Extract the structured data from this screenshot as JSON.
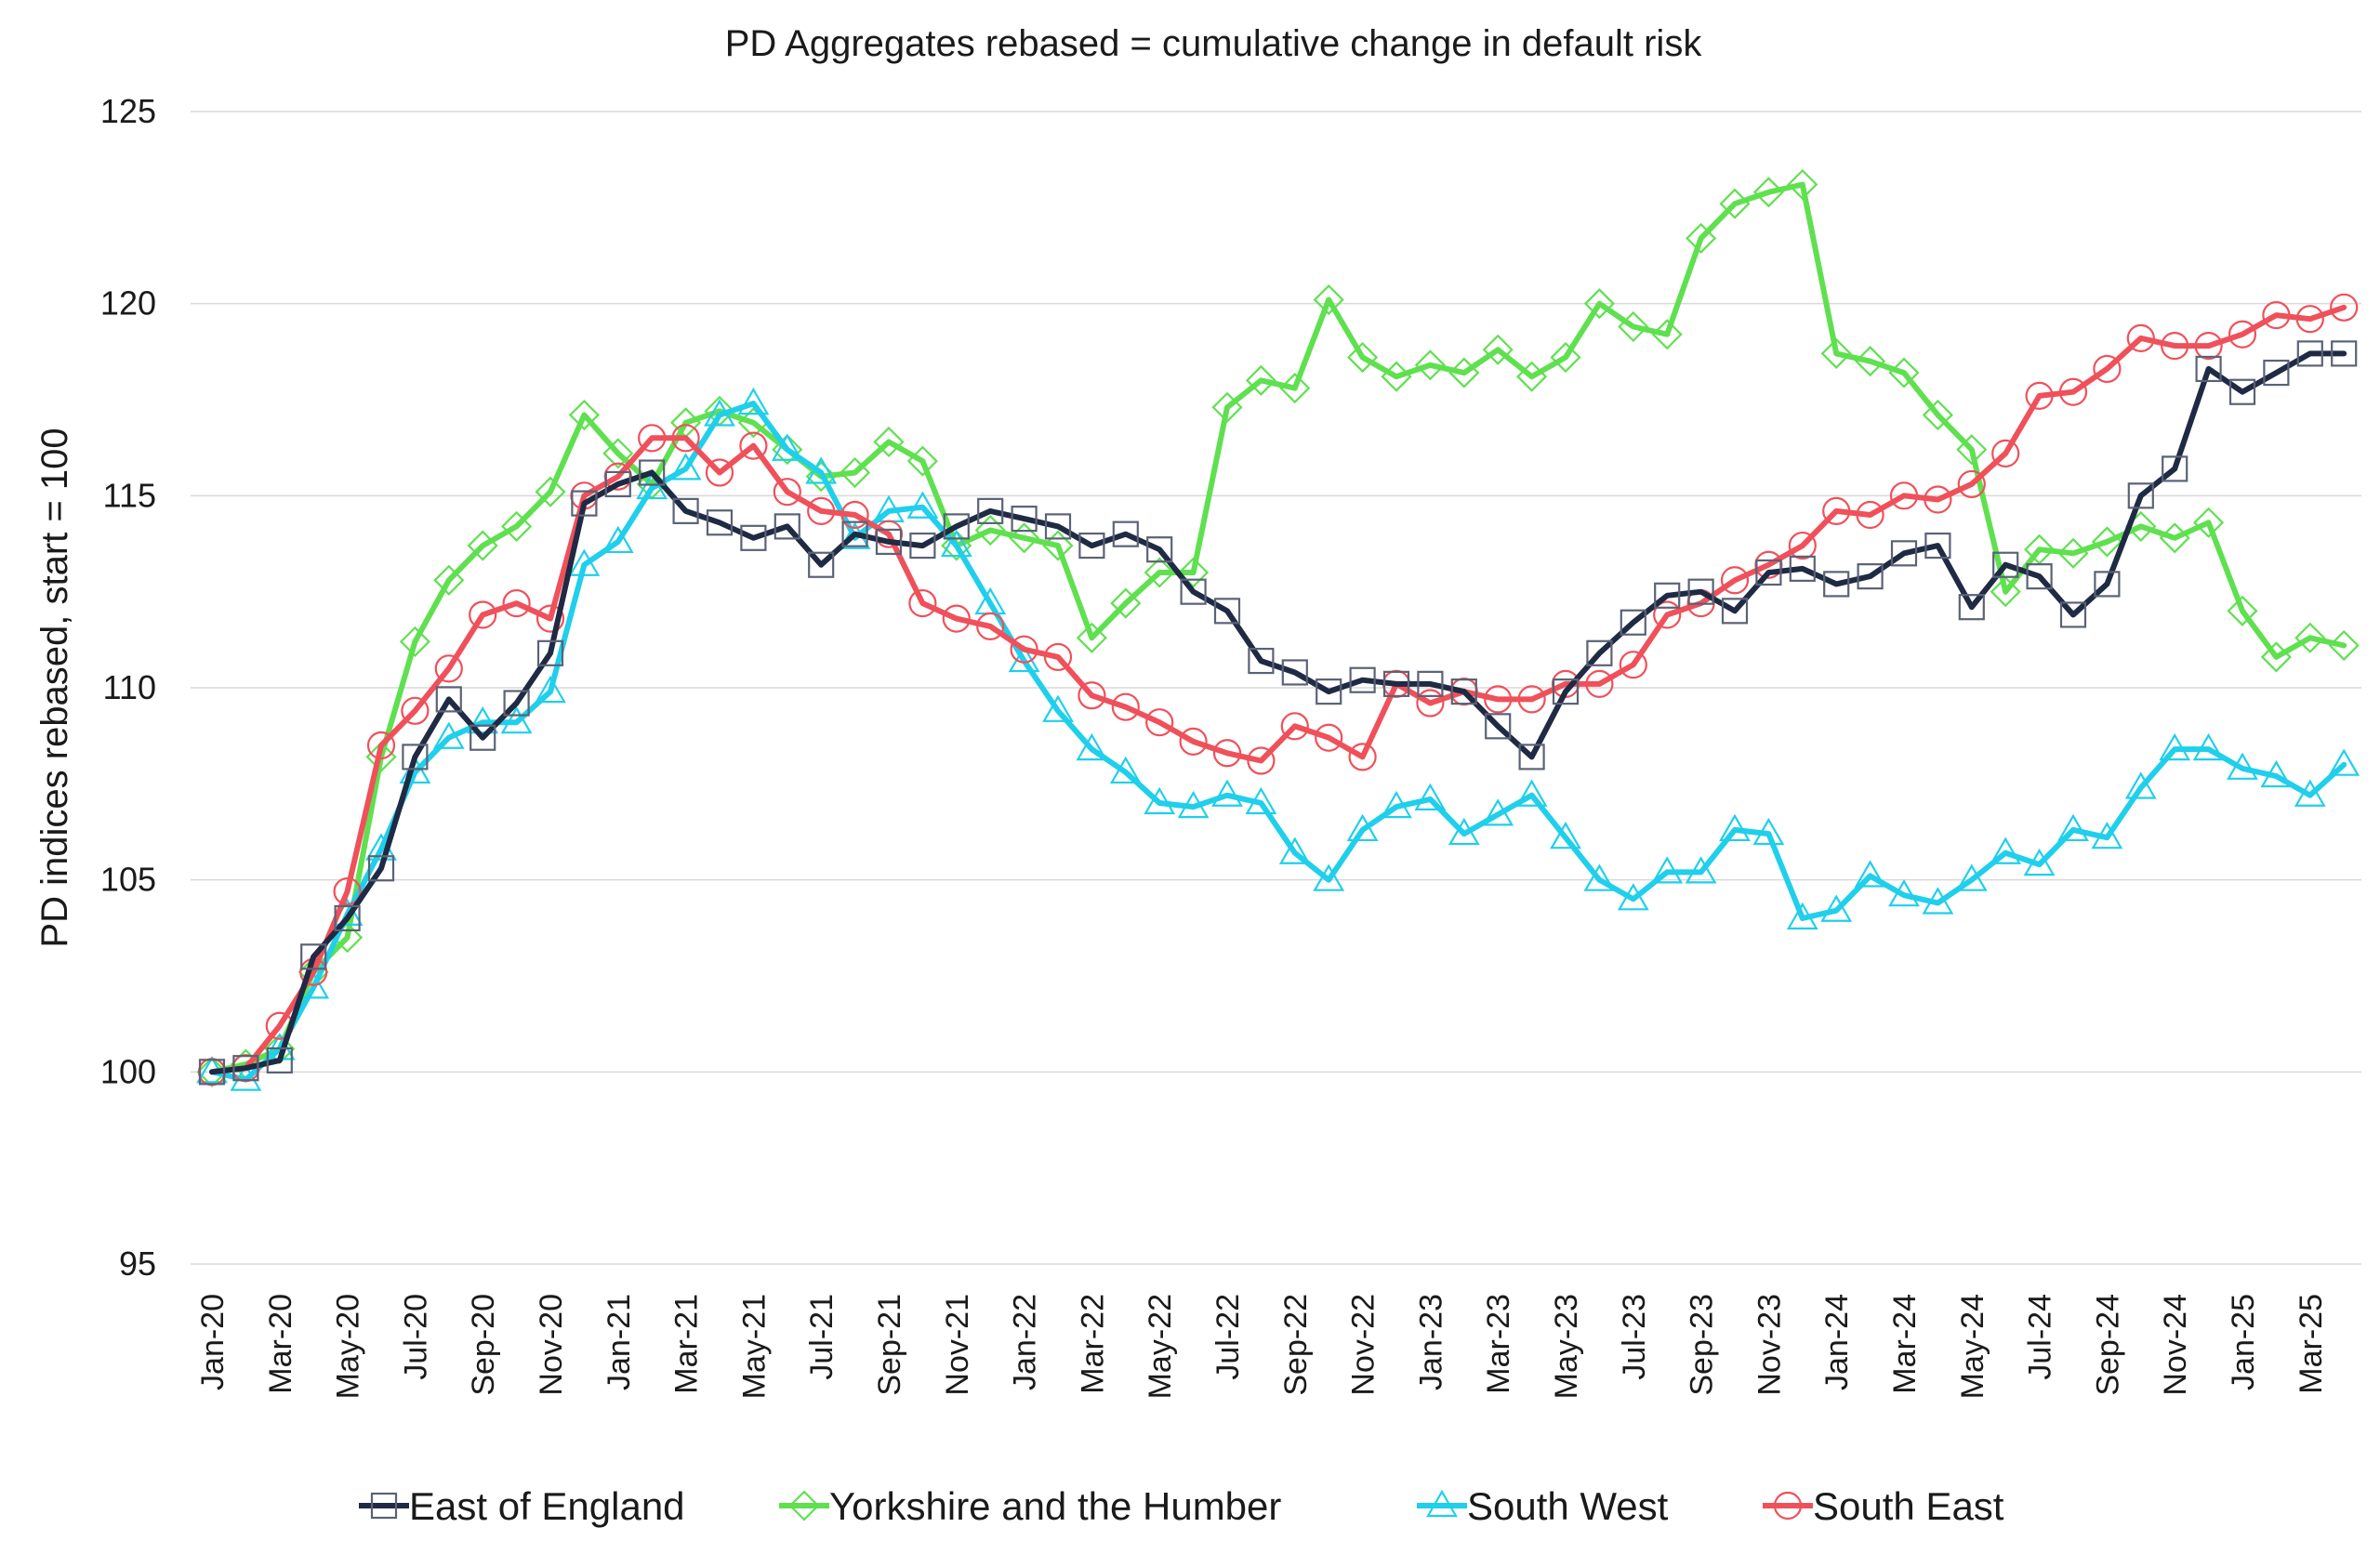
{
  "chart_data": {
    "type": "line",
    "title": "PD Aggregates rebased = cumulative change in default risk",
    "xlabel": "",
    "ylabel": "PD indices rebased, start = 100",
    "ylim": [
      95,
      125
    ],
    "yticks": [
      95,
      100,
      105,
      110,
      115,
      120,
      125
    ],
    "grid": true,
    "legend_position": "bottom",
    "tick_labels": [
      "Jan-20",
      "Mar-20",
      "May-20",
      "Jul-20",
      "Sep-20",
      "Nov-20",
      "Jan-21",
      "Mar-21",
      "May-21",
      "Jul-21",
      "Sep-21",
      "Nov-21",
      "Jan-22",
      "Mar-22",
      "May-22",
      "Jul-22",
      "Sep-22",
      "Nov-22",
      "Jan-23",
      "Mar-23",
      "May-23",
      "Jul-23",
      "Sep-23",
      "Nov-23",
      "Jan-24",
      "Mar-24",
      "May-24",
      "Jul-24",
      "Sep-24",
      "Nov-24",
      "Jan-25",
      "Mar-25"
    ],
    "series": [
      {
        "name": "East of England",
        "color": "#1f2a44",
        "marker": "square",
        "values": [
          100,
          100.1,
          100.3,
          103,
          104,
          105.3,
          108.2,
          109.7,
          108.7,
          109.6,
          110.9,
          114.8,
          115.3,
          115.6,
          114.6,
          114.3,
          113.9,
          114.2,
          113.2,
          114,
          113.8,
          113.7,
          114.2,
          114.6,
          114.4,
          114.2,
          113.7,
          114,
          113.6,
          112.5,
          112,
          110.7,
          110.4,
          109.9,
          110.2,
          110.1,
          110.1,
          109.9,
          109,
          108.2,
          109.9,
          110.9,
          111.7,
          112.4,
          112.5,
          112,
          113,
          113.1,
          112.7,
          112.9,
          113.5,
          113.7,
          112.1,
          113.2,
          112.9,
          111.9,
          112.7,
          115,
          115.7,
          118.3,
          117.7,
          118.2,
          118.7,
          118.7
        ]
      },
      {
        "name": "Yorkshire and the Humber",
        "color": "#5fe04f",
        "marker": "diamond",
        "values": [
          100,
          100.2,
          100.6,
          102.6,
          103.5,
          108.2,
          111.2,
          112.8,
          113.7,
          114.2,
          115.1,
          117.1,
          116.1,
          115.3,
          116.9,
          117.2,
          116.9,
          116.2,
          115.5,
          115.6,
          116.4,
          115.9,
          113.7,
          114.1,
          113.9,
          113.7,
          111.3,
          112.2,
          113,
          113,
          117.3,
          118,
          117.8,
          120.1,
          118.6,
          118.1,
          118.4,
          118.2,
          118.8,
          118.1,
          118.6,
          120,
          119.4,
          119.2,
          121.7,
          122.6,
          122.9,
          123.1,
          118.7,
          118.5,
          118.2,
          117.1,
          116.2,
          112.5,
          113.6,
          113.5,
          113.8,
          114.2,
          113.9,
          114.3,
          112,
          110.8,
          111.3,
          111.1
        ]
      },
      {
        "name": "South West",
        "color": "#1fcfeb",
        "marker": "triangle",
        "values": [
          100,
          99.8,
          100.6,
          102.2,
          104.1,
          105.8,
          107.8,
          108.7,
          109.1,
          109.1,
          109.9,
          113.2,
          113.8,
          115.2,
          115.7,
          117.1,
          117.4,
          116.2,
          115.6,
          113.9,
          114.6,
          114.7,
          113.7,
          112.2,
          110.7,
          109.4,
          108.4,
          107.8,
          107,
          106.9,
          107.2,
          107,
          105.7,
          105,
          106.3,
          106.9,
          107.1,
          106.2,
          106.7,
          107.2,
          106.1,
          105,
          104.5,
          105.2,
          105.2,
          106.3,
          106.2,
          104,
          104.2,
          105.1,
          104.6,
          104.4,
          105,
          105.7,
          105.4,
          106.3,
          106.1,
          107.4,
          108.4,
          108.4,
          107.9,
          107.7,
          107.2,
          108
        ]
      },
      {
        "name": "South East",
        "color": "#f0505a",
        "marker": "circle",
        "values": [
          100,
          100.1,
          101.2,
          102.6,
          104.7,
          108.5,
          109.4,
          110.5,
          111.9,
          112.2,
          111.8,
          115,
          115.5,
          116.5,
          116.5,
          115.6,
          116.3,
          115.1,
          114.6,
          114.5,
          114,
          112.2,
          111.8,
          111.6,
          111,
          110.8,
          109.8,
          109.5,
          109.1,
          108.6,
          108.3,
          108.1,
          109,
          108.7,
          108.2,
          110.1,
          109.6,
          109.9,
          109.7,
          109.7,
          110.1,
          110.1,
          110.6,
          111.9,
          112.2,
          112.8,
          113.2,
          113.7,
          114.6,
          114.5,
          115,
          114.9,
          115.3,
          116.1,
          117.6,
          117.7,
          118.3,
          119.1,
          118.9,
          118.9,
          119.2,
          119.7,
          119.6,
          119.9
        ]
      }
    ]
  }
}
